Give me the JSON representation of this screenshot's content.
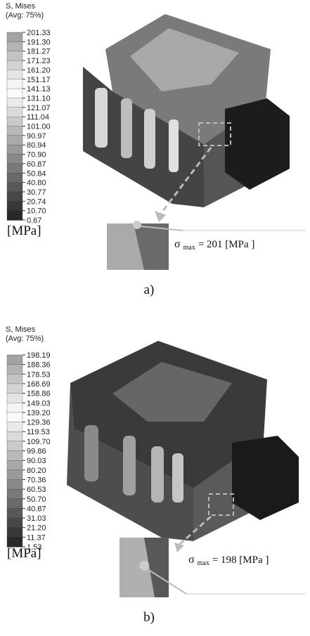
{
  "panels": [
    {
      "legend": {
        "title": "S, Mises",
        "subtitle": "(Avg: 75%)",
        "values": [
          "201.33",
          "191.30",
          "181.27",
          "171.23",
          "161.20",
          "151.17",
          "141.13",
          "131.10",
          "121.07",
          "111.04",
          "101.00",
          "90.97",
          "80.94",
          "70.90",
          "60.87",
          "50.84",
          "40.80",
          "30.77",
          "20.74",
          "10.70",
          "0.67"
        ],
        "unit": "[MPa]"
      },
      "annotation": {
        "symbol": "σ",
        "subscript": "max",
        "text": "= 201  [MPa ]"
      },
      "caption": "a)"
    },
    {
      "legend": {
        "title": "S, Mises",
        "subtitle": "(Avg: 75%)",
        "values": [
          "198.19",
          "188.36",
          "178.53",
          "168.69",
          "158.86",
          "149.03",
          "139.20",
          "129.36",
          "119.53",
          "109.70",
          "99.86",
          "90.03",
          "80.20",
          "70.36",
          "60.53",
          "50.70",
          "40.87",
          "31.03",
          "21.20",
          "11.37",
          "1.53"
        ],
        "unit": "[MPa]"
      },
      "annotation": {
        "symbol": "σ",
        "subscript": "max",
        "text": "= 198  [MPa ]"
      },
      "caption": "b)"
    }
  ]
}
